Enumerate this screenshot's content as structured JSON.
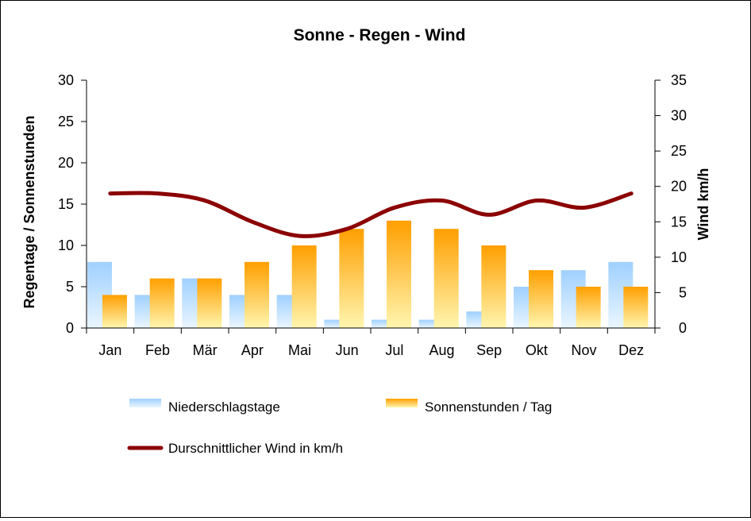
{
  "chart_data": {
    "type": "bar",
    "title": "Sonne - Regen - Wind",
    "ylabel": "Regentage / Sonnenstunden",
    "y2label": "Wind km/h",
    "ylim": [
      0,
      30
    ],
    "y2lim": [
      0,
      35
    ],
    "yticks": [
      0,
      5,
      10,
      15,
      20,
      25,
      30
    ],
    "y2ticks": [
      0,
      5,
      10,
      15,
      20,
      25,
      30,
      35
    ],
    "categories": [
      "Jan",
      "Feb",
      "Mär",
      "Apr",
      "Mai",
      "Jun",
      "Jul",
      "Aug",
      "Sep",
      "Okt",
      "Nov",
      "Dez"
    ],
    "series": [
      {
        "name": "Niederschlagstage",
        "type": "bar",
        "axis": "left",
        "color": "#a9d6ff",
        "values": [
          8,
          4,
          6,
          4,
          4,
          1,
          1,
          1,
          2,
          5,
          7,
          8
        ]
      },
      {
        "name": "Sonnenstunden / Tag",
        "type": "bar",
        "axis": "left",
        "color": "#ffa500",
        "values": [
          4,
          6,
          6,
          8,
          10,
          12,
          13,
          12,
          10,
          7,
          5,
          5
        ]
      },
      {
        "name": "Durschnittlicher Wind in km/h",
        "type": "line",
        "axis": "right",
        "color": "#8b0000",
        "values": [
          19,
          19,
          18,
          15,
          13,
          14,
          17,
          18,
          16,
          18,
          17,
          19
        ]
      }
    ],
    "grid": false,
    "legend_position": "bottom"
  }
}
